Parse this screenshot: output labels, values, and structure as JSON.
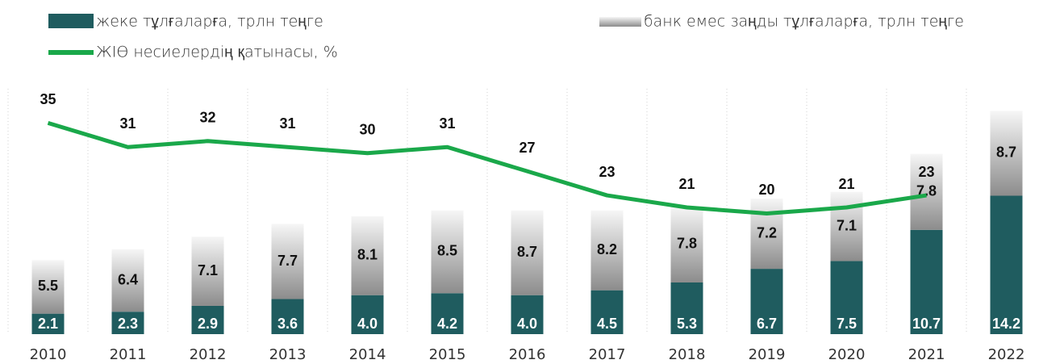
{
  "chart_data": {
    "type": "bar",
    "categories": [
      "2010",
      "2011",
      "2012",
      "2013",
      "2014",
      "2015",
      "2016",
      "2017",
      "2018",
      "2019",
      "2020",
      "2021",
      "2022"
    ],
    "series": [
      {
        "name": "жеке тұлғаларға, трлн теңге",
        "color": "#1f5c5f",
        "stack": true,
        "values": [
          2.1,
          2.3,
          2.9,
          3.6,
          4.0,
          4.2,
          4.0,
          4.5,
          5.3,
          6.7,
          7.5,
          10.7,
          14.2
        ],
        "value_labels": [
          "2.1",
          "2.3",
          "2.9",
          "3.6",
          "4.0",
          "4.2",
          "4.0",
          "4.5",
          "5.3",
          "6.7",
          "7.5",
          "10.7",
          "14.2"
        ]
      },
      {
        "name": "банк емес заңды тұлғаларға, трлн теңге",
        "color": "#8c8c8c",
        "stack": true,
        "values": [
          5.5,
          6.4,
          7.1,
          7.7,
          8.1,
          8.5,
          8.7,
          8.2,
          7.8,
          7.2,
          7.1,
          7.8,
          8.7
        ]
      },
      {
        "name": "ЖІӨ несиелердің қатынасы, %",
        "color": "#1aa84a",
        "type": "line",
        "axis": "y2",
        "values": [
          35,
          31,
          32,
          31,
          30,
          31,
          27,
          23,
          21,
          20,
          21,
          23,
          null
        ]
      }
    ],
    "ylim": [
      0,
      26
    ],
    "y2lim": [
      0,
      42
    ]
  }
}
